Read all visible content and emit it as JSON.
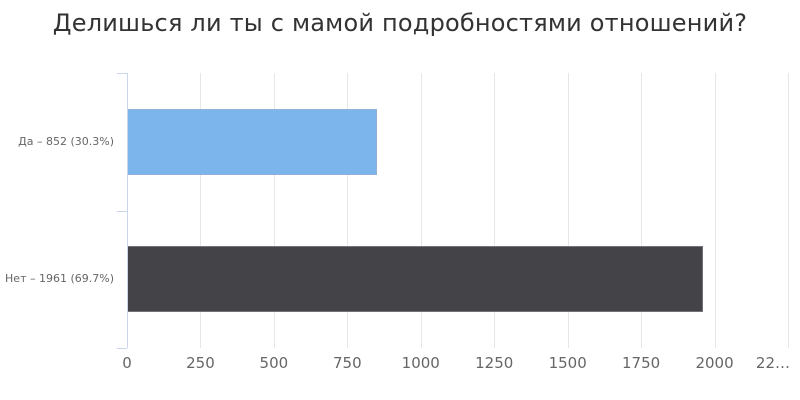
{
  "title": "Делишься ли ты с мамой подробностями отношений?",
  "chart_data": {
    "type": "bar",
    "orientation": "horizontal",
    "title": "Делишься ли ты с мамой подробностями отношений?",
    "categories": [
      "Да",
      "Нет"
    ],
    "values": [
      852,
      1961
    ],
    "percentages": [
      30.3,
      69.7
    ],
    "category_labels": [
      "Да – 852 (30.3%)",
      "Нет – 1961 (69.7%)"
    ],
    "bar_colors": [
      "#7cb5ec",
      "#434348"
    ],
    "x_tick_labels": [
      "0",
      "250",
      "500",
      "750",
      "1000",
      "1250",
      "1500",
      "1750",
      "2000",
      "22…"
    ],
    "x_tick_values": [
      0,
      250,
      500,
      750,
      1000,
      1250,
      1500,
      1750,
      2000,
      2250
    ],
    "xlim": [
      0,
      2250
    ],
    "grid": true,
    "legend": "none"
  },
  "colors": {
    "background": "#ffffff",
    "title_text": "#333333",
    "label_text": "#666666",
    "gridline": "#e6e6e6",
    "axis_line": "#ccd6eb",
    "bar_yes": "#7cb5ec",
    "bar_no": "#434348"
  }
}
